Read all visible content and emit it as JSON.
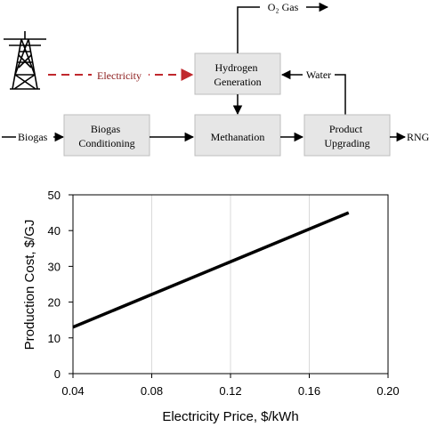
{
  "diagram": {
    "labels": {
      "electricity": "Electricity",
      "biogas_in": "Biogas",
      "o2_gas": "O₂ Gas",
      "water": "Water",
      "rng": "RNG"
    },
    "boxes": {
      "hydrogen": [
        "Hydrogen",
        "Generation"
      ],
      "conditioning": [
        "Biogas",
        "Conditioning"
      ],
      "methanation": [
        "Methanation"
      ],
      "upgrading": [
        "Product",
        "Upgrading"
      ]
    },
    "colors": {
      "box_fill": "#e6e6e6",
      "box_stroke": "#bdbdbd",
      "arrow": "#000000",
      "electricity": "#c0282d",
      "electricity_text": "#8b1a1a"
    },
    "icons": [
      "power-tower-icon"
    ]
  },
  "chart_data": {
    "type": "line",
    "xlabel": "Electricity Price, $/kWh",
    "ylabel": "Production Cost, $/GJ",
    "xlim": [
      0.04,
      0.2
    ],
    "ylim": [
      0,
      50
    ],
    "x_ticks": [
      "0.04",
      "0.08",
      "0.12",
      "0.16",
      "0.20"
    ],
    "y_ticks": [
      "0",
      "10",
      "20",
      "30",
      "40",
      "50"
    ],
    "grid": "vertical",
    "series": [
      {
        "x": [
          0.04,
          0.18
        ],
        "y": [
          13,
          45
        ]
      }
    ],
    "colors": {
      "line": "#000000",
      "grid": "#d9d9d9",
      "axis": "#000000"
    }
  }
}
